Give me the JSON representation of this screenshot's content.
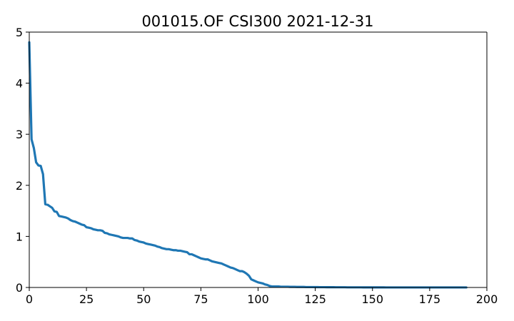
{
  "chart_data": {
    "type": "line",
    "title": "001015.OF CSI300 2021-12-31",
    "xlabel": "",
    "ylabel": "",
    "xlim": [
      0,
      200
    ],
    "ylim": [
      0,
      5
    ],
    "xticks": [
      "0",
      "25",
      "50",
      "75",
      "100",
      "125",
      "150",
      "175",
      "200"
    ],
    "yticks": [
      "0",
      "1",
      "2",
      "3",
      "4",
      "5"
    ],
    "grid": false,
    "legend": "none",
    "colors": {
      "line": "#1f77b4",
      "axes": "#000000",
      "background": "#ffffff"
    },
    "series": [
      {
        "values": [
          4.8,
          2.9,
          2.73,
          2.45,
          2.39,
          2.38,
          2.22,
          1.63,
          1.62,
          1.59,
          1.56,
          1.49,
          1.48,
          1.4,
          1.39,
          1.38,
          1.37,
          1.35,
          1.32,
          1.3,
          1.29,
          1.27,
          1.25,
          1.23,
          1.22,
          1.18,
          1.17,
          1.16,
          1.14,
          1.13,
          1.12,
          1.12,
          1.11,
          1.07,
          1.06,
          1.04,
          1.03,
          1.02,
          1.01,
          1.0,
          0.98,
          0.97,
          0.97,
          0.97,
          0.96,
          0.96,
          0.93,
          0.92,
          0.9,
          0.89,
          0.88,
          0.86,
          0.85,
          0.84,
          0.83,
          0.82,
          0.8,
          0.79,
          0.77,
          0.76,
          0.75,
          0.75,
          0.74,
          0.73,
          0.73,
          0.72,
          0.72,
          0.71,
          0.7,
          0.69,
          0.65,
          0.65,
          0.63,
          0.61,
          0.59,
          0.57,
          0.56,
          0.55,
          0.55,
          0.53,
          0.51,
          0.5,
          0.49,
          0.48,
          0.47,
          0.45,
          0.43,
          0.41,
          0.39,
          0.38,
          0.36,
          0.34,
          0.32,
          0.32,
          0.3,
          0.27,
          0.23,
          0.16,
          0.14,
          0.12,
          0.1,
          0.09,
          0.08,
          0.06,
          0.05,
          0.03,
          0.02,
          0.02,
          0.02,
          0.02,
          0.015,
          0.015,
          0.015,
          0.015,
          0.012,
          0.012,
          0.012,
          0.01,
          0.01,
          0.01,
          0.01,
          0.008,
          0.008,
          0.008,
          0.008,
          0.007,
          0.007,
          0.006,
          0.006,
          0.006,
          0.005,
          0.005,
          0.005,
          0.005,
          0.004,
          0.004,
          0.004,
          0.004,
          0.004,
          0.003,
          0.003,
          0.003,
          0.003,
          0.003,
          0.003,
          0.003,
          0.002,
          0.002,
          0.002,
          0.002,
          0.002,
          0.002,
          0.002,
          0.002,
          0.002,
          0.002,
          0.001,
          0.001,
          0.001,
          0.001,
          0.001,
          0.001,
          0.001,
          0.001,
          0.001,
          0.001,
          0.001,
          0.001,
          0.001,
          0.001,
          0.001,
          0.001,
          0.001,
          0.001,
          0.001,
          0.0005,
          0.0005,
          0.0005,
          0.0005,
          0.0005,
          0.0005,
          0.0005,
          0.0005,
          0.0005,
          0.0005,
          0.0005,
          0.0005,
          0.0005,
          0.0005,
          0.0005,
          0.0005,
          0.0005
        ]
      }
    ]
  }
}
